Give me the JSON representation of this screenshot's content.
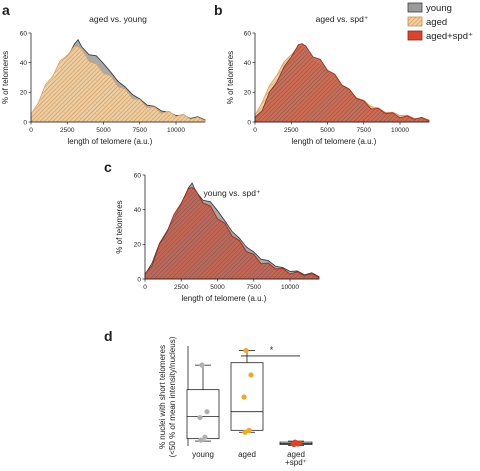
{
  "panel_letters": {
    "a": "a",
    "b": "b",
    "c": "c",
    "d": "d"
  },
  "legend": [
    {
      "label": "young",
      "color": "#8a8a8a",
      "pattern": "solid-gray"
    },
    {
      "label": "aged",
      "color": "#e8b27a",
      "pattern": "hatch-tan"
    },
    {
      "label": "aged+spd⁺",
      "color": "#d9442c",
      "pattern": "solid-red"
    }
  ],
  "palette": {
    "young_fill": "#9a9a9a",
    "young_line": "#3e3e48",
    "aged_fill": "#efc48e",
    "aged_line": "#d9a56a",
    "spd_fill": "#cf4a34",
    "spd_line": "#a02c1c",
    "dot_young": "#b0b0b0",
    "dot_aged": "#f5a623",
    "dot_spd": "#d9442c"
  },
  "chart_data": [
    {
      "id": "a",
      "type": "area",
      "title": "aged vs. young",
      "xlabel": "length of telomere (a.u.)",
      "ylabel": "% of telomeres",
      "xlim": [
        0,
        12000
      ],
      "ylim": [
        0,
        60
      ],
      "xticks": [
        0,
        2500,
        5000,
        7500,
        10000
      ],
      "yticks": [
        0,
        20,
        40,
        60
      ],
      "x": [
        0,
        500,
        1000,
        1500,
        2000,
        2500,
        3000,
        3250,
        3500,
        4000,
        4500,
        5000,
        5500,
        6000,
        6500,
        7000,
        7500,
        8000,
        8500,
        9000,
        9500,
        10000,
        10500,
        11000,
        11500,
        12000
      ],
      "series": [
        {
          "name": "young",
          "values": [
            2,
            10,
            20,
            28,
            34,
            44,
            52,
            56,
            50,
            46,
            44,
            40,
            33,
            28,
            23,
            19,
            15,
            12,
            10,
            8,
            6,
            5,
            4,
            3,
            3,
            2
          ]
        },
        {
          "name": "aged",
          "values": [
            4,
            14,
            24,
            32,
            40,
            46,
            50,
            52,
            48,
            42,
            38,
            34,
            30,
            25,
            21,
            17,
            14,
            11,
            9,
            7,
            6,
            5,
            4,
            3,
            2,
            2
          ]
        }
      ]
    },
    {
      "id": "b",
      "type": "area",
      "title": "aged vs. spd⁺",
      "xlabel": "length of telomere (a.u.)",
      "ylabel": "% of telomeres",
      "xlim": [
        0,
        12000
      ],
      "ylim": [
        0,
        60
      ],
      "xticks": [
        0,
        2500,
        5000,
        7500,
        10000
      ],
      "yticks": [
        0,
        20,
        40,
        60
      ],
      "x": [
        0,
        500,
        1000,
        1500,
        2000,
        2500,
        3000,
        3250,
        3500,
        4000,
        4500,
        5000,
        5500,
        6000,
        6500,
        7000,
        7500,
        8000,
        8500,
        9000,
        9500,
        10000,
        10500,
        11000,
        11500,
        12000
      ],
      "series": [
        {
          "name": "aged",
          "values": [
            4,
            14,
            24,
            32,
            40,
            46,
            50,
            52,
            48,
            42,
            38,
            34,
            30,
            25,
            21,
            17,
            14,
            11,
            9,
            7,
            6,
            5,
            4,
            3,
            2,
            2
          ]
        },
        {
          "name": "aged+spd⁺",
          "values": [
            2,
            9,
            19,
            28,
            36,
            45,
            51,
            54,
            50,
            45,
            41,
            36,
            31,
            26,
            21,
            17,
            13,
            10,
            8,
            7,
            5,
            4,
            3,
            3,
            2,
            2
          ]
        }
      ]
    },
    {
      "id": "c",
      "type": "area",
      "title": "young vs. spd⁺",
      "xlabel": "length of telomere (a.u.)",
      "ylabel": "% of telomeres",
      "xlim": [
        0,
        12000
      ],
      "ylim": [
        0,
        60
      ],
      "xticks": [
        0,
        2500,
        5000,
        7500,
        10000
      ],
      "yticks": [
        0,
        20,
        40,
        60
      ],
      "x": [
        0,
        500,
        1000,
        1500,
        2000,
        2500,
        3000,
        3250,
        3500,
        4000,
        4500,
        5000,
        5500,
        6000,
        6500,
        7000,
        7500,
        8000,
        8500,
        9000,
        9500,
        10000,
        10500,
        11000,
        11500,
        12000
      ],
      "series": [
        {
          "name": "young",
          "values": [
            2,
            10,
            20,
            28,
            34,
            44,
            52,
            56,
            50,
            46,
            44,
            40,
            33,
            28,
            23,
            19,
            15,
            12,
            10,
            8,
            6,
            5,
            4,
            3,
            3,
            2
          ]
        },
        {
          "name": "aged+spd⁺",
          "values": [
            2,
            9,
            19,
            28,
            36,
            45,
            51,
            54,
            50,
            45,
            41,
            36,
            31,
            26,
            21,
            17,
            13,
            10,
            8,
            7,
            5,
            4,
            3,
            3,
            2,
            2
          ]
        }
      ]
    },
    {
      "id": "d",
      "type": "box",
      "ylabel": "% nuclei with short telomeres\n(<50 % of mean intensity/nucleus)",
      "ylim": [
        0,
        20
      ],
      "categories": [
        "young",
        "aged",
        "aged\n+spd⁺"
      ],
      "boxes": [
        {
          "name": "young",
          "min": 1.0,
          "q1": 1.5,
          "median": 6.0,
          "q3": 11.5,
          "max": 16.5,
          "points": [
            16.5,
            7.0,
            5.8,
            1.8,
            1.2
          ]
        },
        {
          "name": "aged",
          "min": 2.8,
          "q1": 3.2,
          "median": 7.0,
          "q3": 17.0,
          "max": 19.5,
          "points": [
            19.5,
            14.5,
            10.0,
            3.2,
            2.8
          ]
        },
        {
          "name": "aged+spd⁺",
          "min": 0.1,
          "q1": 0.3,
          "median": 0.5,
          "q3": 0.8,
          "max": 1.0,
          "points": [
            0.8,
            0.6,
            0.5,
            0.4,
            0.3
          ]
        }
      ],
      "significance": {
        "from": 1,
        "to": 2,
        "y": 19.2,
        "label": "*"
      }
    }
  ]
}
